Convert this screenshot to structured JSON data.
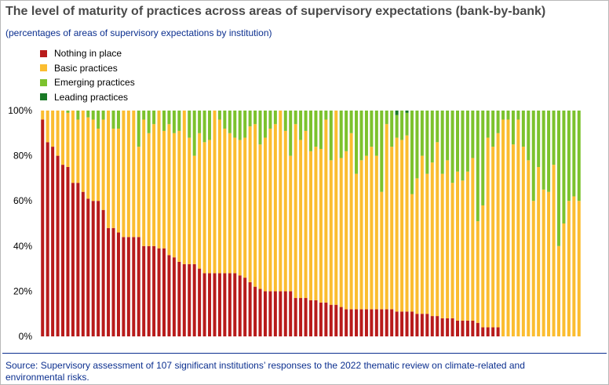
{
  "title": "The level of maturity of practices across areas of supervisory expectations (bank-by-bank)",
  "subtitle": "(percentages of areas of supervisory expectations by institution)",
  "source": "Source: Supervisory assessment of 107 significant institutions’ responses to the 2022 thematic review on climate-related and environmental risks.",
  "colors": {
    "nothing": "#b81b1b",
    "basic": "#fbbd30",
    "emerging": "#7cc22d",
    "leading": "#1a7a26"
  },
  "chart_data": {
    "type": "bar",
    "stacked": true,
    "ylim": [
      0,
      100
    ],
    "yticks": [
      "0%",
      "20%",
      "40%",
      "60%",
      "80%",
      "100%"
    ],
    "series": [
      {
        "name": "Nothing in place",
        "key": "nothing",
        "values": [
          96,
          86,
          84,
          80,
          76,
          75,
          68,
          68,
          64,
          61,
          60,
          60,
          56,
          48,
          48,
          46,
          44,
          44,
          44,
          44,
          40,
          40,
          40,
          39,
          39,
          36,
          35,
          33,
          32,
          32,
          32,
          30,
          28,
          28,
          28,
          28,
          28,
          28,
          28,
          27,
          26,
          24,
          22,
          21,
          20,
          20,
          20,
          20,
          20,
          20,
          17,
          17,
          17,
          16,
          16,
          15,
          15,
          14,
          14,
          13,
          12,
          12,
          12,
          12,
          12,
          12,
          12,
          12,
          12,
          12,
          11,
          11,
          11,
          11,
          10,
          10,
          10,
          9,
          9,
          8,
          8,
          8,
          7,
          7,
          7,
          7,
          6,
          4,
          4,
          4,
          4,
          0,
          0,
          0,
          0,
          0,
          0,
          0,
          0,
          0,
          0,
          0,
          0,
          0,
          0,
          0,
          0
        ]
      },
      {
        "name": "Basic practices",
        "key": "basic",
        "values": [
          4,
          14,
          16,
          20,
          24,
          24,
          32,
          28,
          36,
          36,
          36,
          32,
          40,
          52,
          44,
          46,
          56,
          56,
          56,
          40,
          56,
          50,
          54,
          61,
          52,
          58,
          55,
          58,
          68,
          56,
          48,
          60,
          58,
          59,
          72,
          68,
          64,
          62,
          60,
          60,
          62,
          69,
          72,
          64,
          68,
          72,
          74,
          80,
          71,
          60,
          77,
          70,
          74,
          66,
          68,
          68,
          81,
          64,
          86,
          66,
          70,
          78,
          60,
          66,
          68,
          72,
          68,
          52,
          82,
          72,
          77,
          76,
          78,
          52,
          60,
          70,
          62,
          68,
          77,
          64,
          70,
          60,
          66,
          62,
          66,
          72,
          45,
          54,
          84,
          80,
          86,
          96,
          96,
          85,
          96,
          84,
          78,
          60,
          75,
          65,
          64,
          76,
          40,
          50,
          60,
          62,
          60
        ]
      },
      {
        "name": "Emerging practices",
        "key": "emerging",
        "values": [
          0,
          0,
          0,
          0,
          0,
          1,
          0,
          4,
          0,
          3,
          4,
          8,
          4,
          0,
          8,
          8,
          0,
          0,
          0,
          16,
          4,
          10,
          6,
          0,
          9,
          6,
          10,
          9,
          0,
          12,
          20,
          10,
          14,
          13,
          0,
          4,
          8,
          10,
          12,
          13,
          12,
          7,
          6,
          15,
          12,
          8,
          6,
          0,
          9,
          20,
          6,
          13,
          9,
          18,
          16,
          17,
          4,
          22,
          0,
          21,
          18,
          10,
          28,
          22,
          20,
          16,
          20,
          36,
          6,
          16,
          10,
          13,
          10,
          37,
          30,
          20,
          28,
          23,
          14,
          28,
          22,
          32,
          27,
          31,
          27,
          21,
          49,
          42,
          12,
          16,
          10,
          4,
          4,
          15,
          4,
          16,
          22,
          40,
          25,
          35,
          36,
          24,
          60,
          50,
          40,
          38,
          40
        ]
      },
      {
        "name": "Leading practices",
        "key": "leading",
        "values": [
          0,
          0,
          0,
          0,
          0,
          0,
          0,
          0,
          0,
          0,
          0,
          0,
          0,
          0,
          0,
          0,
          0,
          0,
          0,
          0,
          0,
          0,
          0,
          0,
          0,
          0,
          0,
          0,
          0,
          0,
          0,
          0,
          0,
          0,
          0,
          0,
          0,
          0,
          0,
          0,
          0,
          0,
          0,
          0,
          0,
          0,
          0,
          0,
          0,
          0,
          0,
          0,
          0,
          0,
          0,
          0,
          0,
          0,
          0,
          0,
          0,
          0,
          0,
          0,
          0,
          0,
          0,
          0,
          0,
          0,
          2,
          0,
          1,
          0,
          0,
          0,
          0,
          0,
          0,
          0,
          0,
          0,
          0,
          0,
          0,
          0,
          0,
          0,
          0,
          0,
          0,
          0,
          0,
          0,
          0,
          0,
          0,
          0,
          0,
          0,
          0,
          0,
          0,
          0,
          0,
          0,
          0
        ]
      }
    ],
    "legend_position": "top-left",
    "grid": false
  }
}
